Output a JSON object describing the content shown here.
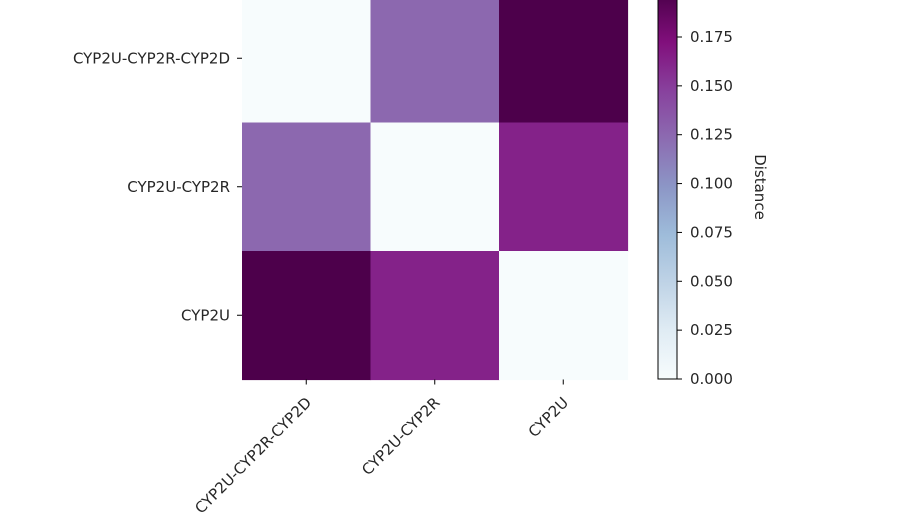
{
  "chart_data": {
    "type": "heatmap",
    "rows": [
      "CYP2U-CYP2R-CYP2D",
      "CYP2U-CYP2R",
      "CYP2U"
    ],
    "columns": [
      "CYP2U-CYP2R-CYP2D",
      "CYP2U-CYP2R",
      "CYP2U"
    ],
    "values": [
      [
        0.0,
        0.125,
        0.197
      ],
      [
        0.125,
        0.0,
        0.163
      ],
      [
        0.197,
        0.163,
        0.0
      ]
    ],
    "colormap": "BuPu",
    "colorbar": {
      "label": "Distance",
      "range": [
        0.0,
        0.197
      ],
      "ticks": [
        "0.000",
        "0.025",
        "0.050",
        "0.075",
        "0.100",
        "0.125",
        "0.150",
        "0.175"
      ]
    },
    "xlabel": "",
    "ylabel": "",
    "title": ""
  },
  "colors": {
    "text": "#262626",
    "axis": "#000000",
    "colormap_stops": [
      "#f7fcfd",
      "#e0ecf4",
      "#bfd3e6",
      "#9ebcda",
      "#8c96c6",
      "#8c6bb1",
      "#88419d",
      "#810f7c",
      "#4d004b"
    ]
  }
}
